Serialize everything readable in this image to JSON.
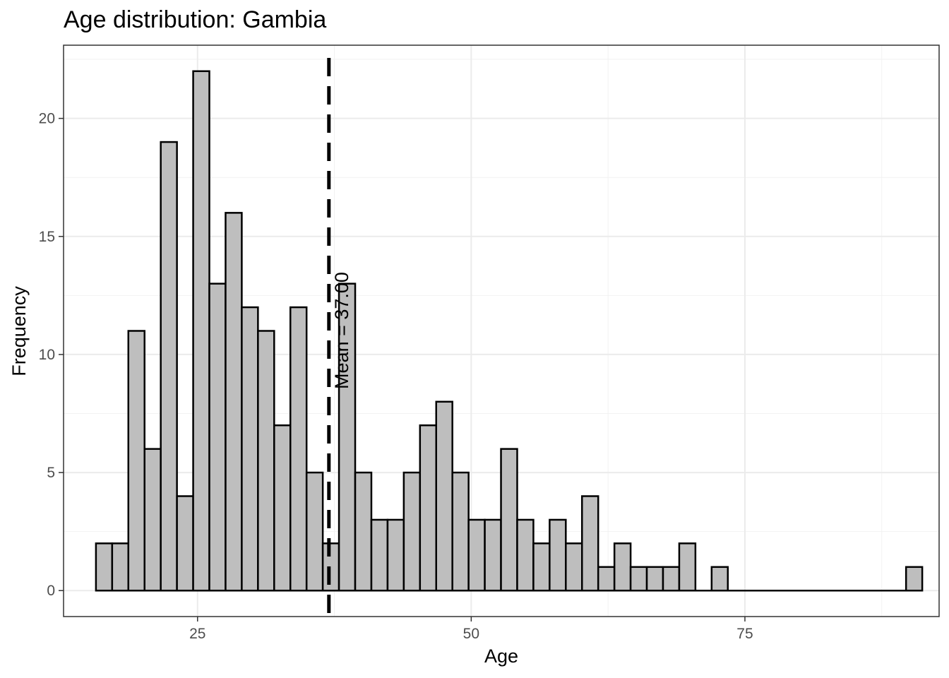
{
  "chart_data": {
    "type": "bar",
    "title": "Age distribution: Gambia",
    "xlabel": "Age",
    "ylabel": "Frequency",
    "xlim": [
      12.76,
      92.74
    ],
    "ylim": [
      -1.1,
      23.1
    ],
    "x_ticks": [
      25,
      50,
      75
    ],
    "y_ticks": [
      0,
      5,
      10,
      15,
      20
    ],
    "bin_width": 1.48,
    "bin_centers": [
      16.46,
      17.94,
      19.42,
      20.9,
      22.38,
      23.86,
      25.34,
      26.82,
      28.3,
      29.78,
      31.26,
      32.74,
      34.22,
      35.7,
      37.18,
      38.66,
      40.14,
      41.62,
      43.1,
      44.58,
      46.06,
      47.54,
      49.02,
      50.5,
      51.98,
      53.46,
      54.94,
      56.42,
      57.9,
      59.38,
      60.86,
      62.34,
      63.82,
      65.3,
      66.78,
      68.26,
      69.74,
      71.22,
      72.7,
      74.18,
      75.66,
      77.14,
      78.62,
      80.1,
      81.58,
      83.06,
      84.54,
      86.02,
      87.5,
      88.98,
      90.46
    ],
    "values": [
      2,
      2,
      11,
      6,
      19,
      4,
      22,
      13,
      16,
      12,
      11,
      7,
      12,
      5,
      2,
      13,
      5,
      3,
      3,
      5,
      7,
      8,
      5,
      3,
      3,
      6,
      3,
      2,
      3,
      2,
      4,
      1,
      2,
      1,
      1,
      1,
      2,
      0,
      1,
      0,
      0,
      0,
      0,
      0,
      0,
      0,
      0,
      0,
      0,
      0,
      1
    ],
    "mean": 37,
    "mean_label": "Mean = 37.00",
    "grid": true,
    "colors": {
      "bar_fill": "#bebebe",
      "bar_outline": "#000000",
      "mean_line": "#000000"
    }
  }
}
